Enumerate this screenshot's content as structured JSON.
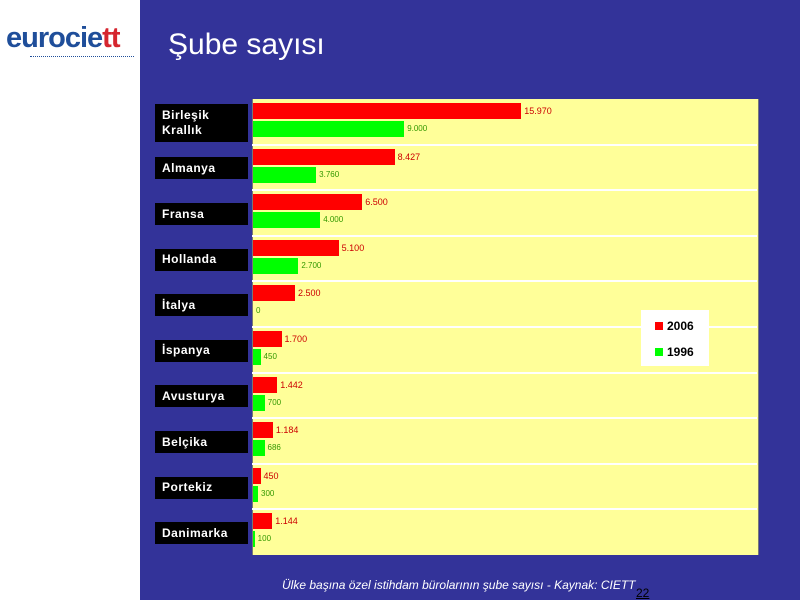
{
  "logo": {
    "text_main": "eurocie",
    "text_accent": "tt"
  },
  "slide": {
    "title": "Şube sayısı",
    "source": "Ülke başına özel istihdam bürolarının şube sayısı - Kaynak: CIETT",
    "page_number": "22"
  },
  "colors": {
    "series_2006": "#ff0000",
    "series_1996": "#00ff00",
    "plot_bg": "#ffff99",
    "panel_bg": "#333399",
    "label_bg": "#000000"
  },
  "chart_data": {
    "type": "bar",
    "orientation": "horizontal",
    "title": "Şube sayısı",
    "categories": [
      "Birleşik Krallık",
      "Almanya",
      "Fransa",
      "Hollanda",
      "İtalya",
      "İspanya",
      "Avusturya",
      "Belçika",
      "Portekiz",
      "Danimarka"
    ],
    "series": [
      {
        "name": "2006",
        "values": [
          15970,
          8427,
          6500,
          5100,
          2500,
          1700,
          1442,
          1184,
          450,
          1144
        ],
        "labels": [
          "15.970",
          "8.427",
          "6.500",
          "5.100",
          "2.500",
          "1.700",
          "1.442",
          "1.184",
          "450",
          "1.144"
        ]
      },
      {
        "name": "1996",
        "values": [
          9000,
          3760,
          4000,
          2700,
          0,
          450,
          700,
          686,
          300,
          100
        ],
        "labels": [
          "9.000",
          "3.760",
          "4.000",
          "2.700",
          "0",
          "450",
          "700",
          "686",
          "300",
          "100"
        ]
      }
    ],
    "xlim": [
      0,
      30000
    ],
    "grid": false,
    "legend": "right"
  }
}
